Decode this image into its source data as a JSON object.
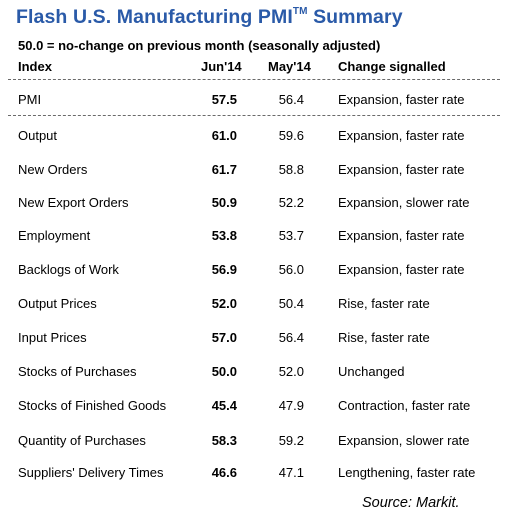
{
  "title": {
    "main": "Flash U.S. Manufacturing PMI",
    "tm": "TM",
    "suffix": " Summary"
  },
  "subtitle": "50.0 = no-change on previous month (seasonally adjusted)",
  "headers": {
    "index": "Index",
    "jun": "Jun'14",
    "may": "May'14",
    "change": "Change signalled"
  },
  "rows": [
    {
      "index": "PMI",
      "jun": "57.5",
      "may": "56.4",
      "change": "Expansion, faster rate"
    },
    {
      "index": "Output",
      "jun": "61.0",
      "may": "59.6",
      "change": "Expansion, faster rate"
    },
    {
      "index": "New Orders",
      "jun": "61.7",
      "may": "58.8",
      "change": "Expansion, faster rate"
    },
    {
      "index": "New Export Orders",
      "jun": "50.9",
      "may": "52.2",
      "change": "Expansion, slower rate"
    },
    {
      "index": "Employment",
      "jun": "53.8",
      "may": "53.7",
      "change": "Expansion, faster rate"
    },
    {
      "index": "Backlogs of Work",
      "jun": "56.9",
      "may": "56.0",
      "change": "Expansion, faster rate"
    },
    {
      "index": "Output Prices",
      "jun": "52.0",
      "may": "50.4",
      "change": "Rise, faster rate"
    },
    {
      "index": "Input Prices",
      "jun": "57.0",
      "may": "56.4",
      "change": "Rise, faster rate"
    },
    {
      "index": "Stocks of Purchases",
      "jun": "50.0",
      "may": "52.0",
      "change": "Unchanged"
    },
    {
      "index": "Stocks of Finished Goods",
      "jun": "45.4",
      "may": "47.9",
      "change": "Contraction, faster rate"
    },
    {
      "index": "Quantity of Purchases",
      "jun": "58.3",
      "may": "59.2",
      "change": "Expansion, slower rate"
    },
    {
      "index": "Suppliers' Delivery Times",
      "jun": "46.6",
      "may": "47.1",
      "change": "Lengthening, faster rate"
    }
  ],
  "source": "Source: Markit."
}
